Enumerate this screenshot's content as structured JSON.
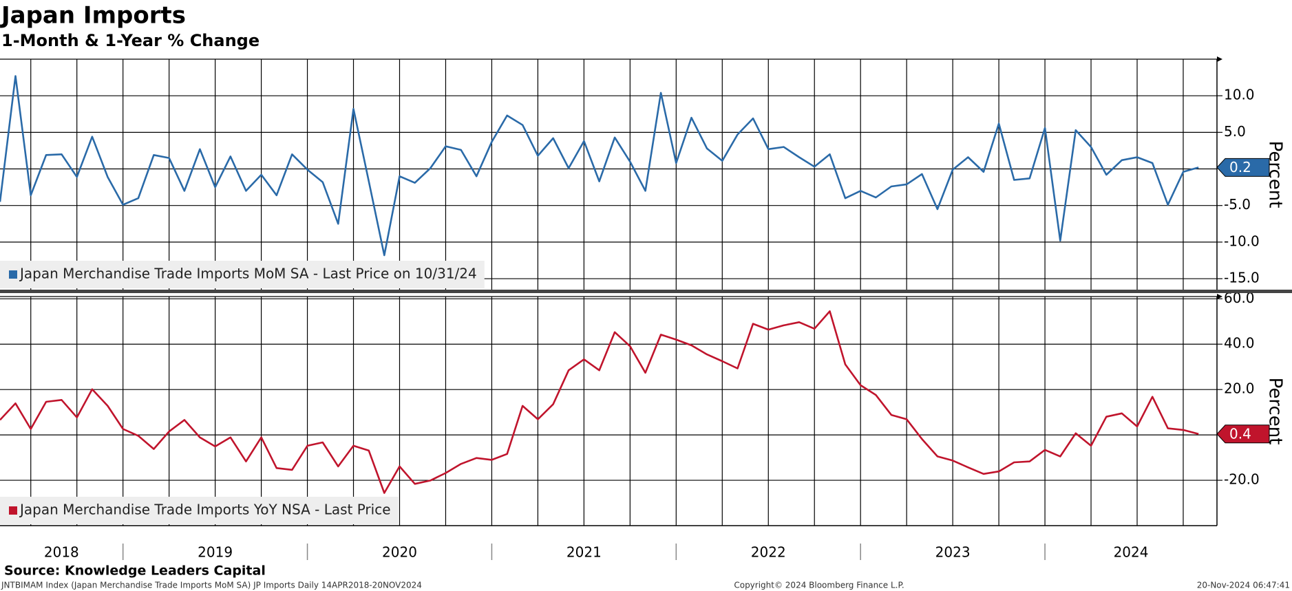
{
  "header": {
    "title": "Japan Imports",
    "subtitle": "1-Month & 1-Year % Change"
  },
  "footer": {
    "source": "Source: Knowledge Leaders Capital",
    "index": "JNTBIMAM Index (Japan Merchandise Trade Imports MoM SA) JP Imports  Daily 14APR2018-20NOV2024",
    "copyright": "Copyright© 2024 Bloomberg Finance L.P.",
    "timestamp": "20-Nov-2024 06:47:41"
  },
  "chart_data": [
    {
      "type": "line",
      "y_label": "Percent",
      "x": [
        2018.333,
        2018.417,
        2018.5,
        2018.583,
        2018.667,
        2018.75,
        2018.833,
        2018.917,
        2019,
        2019.083,
        2019.167,
        2019.25,
        2019.333,
        2019.417,
        2019.5,
        2019.583,
        2019.667,
        2019.75,
        2019.833,
        2019.917,
        2020,
        2020.083,
        2020.167,
        2020.25,
        2020.333,
        2020.417,
        2020.5,
        2020.583,
        2020.667,
        2020.75,
        2020.833,
        2020.917,
        2021,
        2021.083,
        2021.167,
        2021.25,
        2021.333,
        2021.417,
        2021.5,
        2021.583,
        2021.667,
        2021.75,
        2021.833,
        2021.917,
        2022,
        2022.083,
        2022.167,
        2022.25,
        2022.333,
        2022.417,
        2022.5,
        2022.583,
        2022.667,
        2022.75,
        2022.833,
        2022.917,
        2023,
        2023.083,
        2023.167,
        2023.25,
        2023.333,
        2023.417,
        2023.5,
        2023.583,
        2023.667,
        2023.75,
        2023.833,
        2023.917,
        2024,
        2024.083,
        2024.167,
        2024.25,
        2024.333,
        2024.417,
        2024.5,
        2024.583,
        2024.667,
        2024.75,
        2024.833
      ],
      "xlim": [
        2018.333,
        2024.933
      ],
      "series": [
        {
          "name": "Japan Merchandise Trade Imports MoM SA - Last Price on 10/31/24",
          "color": "#2a6aa8",
          "values": [
            -4.5,
            12.7,
            -3.6,
            1.9,
            2.0,
            -1.1,
            4.4,
            -1.1,
            -4.9,
            -4.0,
            1.9,
            1.5,
            -3.0,
            2.7,
            -2.5,
            1.7,
            -3.0,
            -0.8,
            -3.6,
            2.0,
            -0.1,
            -1.8,
            -7.5,
            8.2,
            -1.7,
            -11.8,
            -1.0,
            -1.9,
            0.1,
            3.1,
            2.6,
            -1.0,
            3.7,
            7.3,
            6.0,
            1.8,
            4.2,
            0.1,
            3.8,
            -1.7,
            4.3,
            1.0,
            -3.0,
            10.4,
            0.8,
            7.0,
            2.8,
            1.1,
            4.7,
            6.9,
            2.7,
            3.0,
            1.6,
            0.3,
            2.0,
            -4.0,
            -3.0,
            -3.9,
            -2.4,
            -2.1,
            -0.7,
            -5.5,
            -0.1,
            1.6,
            -0.4,
            6.2,
            -1.5,
            -1.3,
            5.6,
            -9.8,
            5.3,
            3.0,
            -0.8,
            1.2,
            1.6,
            0.8,
            -4.9,
            -0.4,
            0.2
          ]
        }
      ],
      "ylim": [
        -16.5,
        15
      ],
      "yticks": [
        {
          "value": -15,
          "label": "-15.0"
        },
        {
          "value": -10,
          "label": "-10.0"
        },
        {
          "value": -5,
          "label": "-5.0"
        },
        {
          "value": 5,
          "label": "5.0"
        },
        {
          "value": 10,
          "label": "10.0"
        }
      ],
      "grid": true
    },
    {
      "type": "line",
      "y_label": "Percent",
      "x": [
        2018.333,
        2018.417,
        2018.5,
        2018.583,
        2018.667,
        2018.75,
        2018.833,
        2018.917,
        2019,
        2019.083,
        2019.167,
        2019.25,
        2019.333,
        2019.417,
        2019.5,
        2019.583,
        2019.667,
        2019.75,
        2019.833,
        2019.917,
        2020,
        2020.083,
        2020.167,
        2020.25,
        2020.333,
        2020.417,
        2020.5,
        2020.583,
        2020.667,
        2020.75,
        2020.833,
        2020.917,
        2021,
        2021.083,
        2021.167,
        2021.25,
        2021.333,
        2021.417,
        2021.5,
        2021.583,
        2021.667,
        2021.75,
        2021.833,
        2021.917,
        2022,
        2022.083,
        2022.167,
        2022.25,
        2022.333,
        2022.417,
        2022.5,
        2022.583,
        2022.667,
        2022.75,
        2022.833,
        2022.917,
        2023,
        2023.083,
        2023.167,
        2023.25,
        2023.333,
        2023.417,
        2023.5,
        2023.583,
        2023.667,
        2023.75,
        2023.833,
        2023.917,
        2024,
        2024.083,
        2024.167,
        2024.25,
        2024.333,
        2024.417,
        2024.5,
        2024.583,
        2024.667,
        2024.75,
        2024.833
      ],
      "xlim": [
        2018.333,
        2024.933
      ],
      "xticks": [
        2018,
        2019,
        2020,
        2021,
        2022,
        2023,
        2024
      ],
      "series": [
        {
          "name": "Japan Merchandise Trade Imports YoY NSA - Last Price",
          "color": "#c0142c",
          "values": [
            6.6,
            13.9,
            2.6,
            14.6,
            15.4,
            7.7,
            20.1,
            12.8,
            2.6,
            -0.4,
            -6.2,
            1.5,
            6.6,
            -1.1,
            -5.1,
            -1.1,
            -11.7,
            -1.1,
            -14.6,
            -15.4,
            -4.8,
            -3.3,
            -13.9,
            -4.8,
            -6.9,
            -25.6,
            -13.9,
            -21.6,
            -20.1,
            -16.8,
            -12.8,
            -10.2,
            -11.0,
            -8.4,
            12.8,
            6.9,
            13.5,
            28.5,
            33.3,
            28.5,
            45.3,
            39.1,
            27.4,
            44.2,
            42.0,
            39.5,
            35.5,
            32.5,
            29.3,
            49.0,
            46.4,
            48.3,
            49.7,
            46.8,
            54.5,
            31.1,
            21.9,
            17.6,
            8.8,
            6.9,
            -1.8,
            -9.5,
            -11.3,
            -14.3,
            -17.2,
            -16.1,
            -12.1,
            -11.7,
            -6.6,
            -9.5,
            0.7,
            -4.8,
            8.0,
            9.5,
            3.7,
            16.8,
            2.9,
            2.2,
            0.4
          ]
        }
      ],
      "ylim": [
        -40,
        61
      ],
      "yticks": [
        {
          "value": -20,
          "label": "-20.0"
        },
        {
          "value": 20,
          "label": "20.0"
        },
        {
          "value": 40,
          "label": "40.0"
        },
        {
          "value": 60,
          "label": "60.0"
        }
      ],
      "grid": true
    }
  ]
}
